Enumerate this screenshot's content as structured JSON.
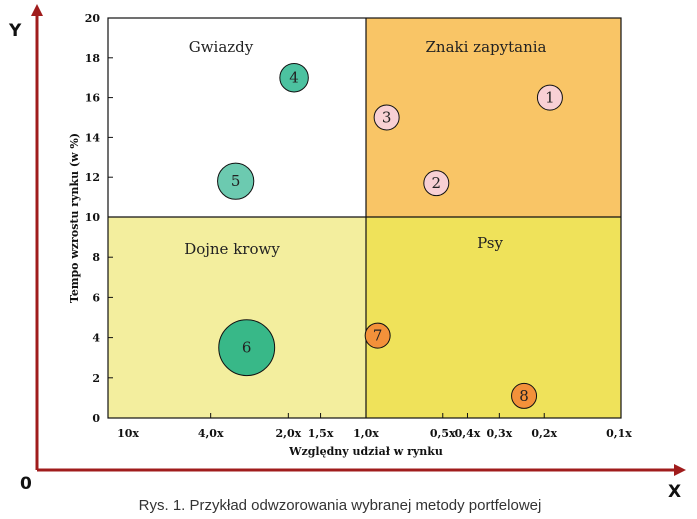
{
  "chart_data": {
    "type": "scatter",
    "subtype": "bubble",
    "title": "",
    "caption": "Rys. 1. Przykład odwzorowania wybranej metody portfelowej",
    "xlabel": "Względny udział w rynku",
    "ylabel": "Tempo wzrostu rynku  (w %)",
    "x_axis_letter": "X",
    "y_axis_letter": "Y",
    "origin_label": "0",
    "x_scale": "log",
    "x_reversed": true,
    "xlim": [
      10,
      0.1
    ],
    "ylim": [
      0,
      20
    ],
    "x_ticks": [
      {
        "value": 10,
        "label": "10x"
      },
      {
        "value": 4,
        "label": "4,0x"
      },
      {
        "value": 2,
        "label": "2,0x"
      },
      {
        "value": 1.5,
        "label": "1,5x"
      },
      {
        "value": 1,
        "label": "1,0x"
      },
      {
        "value": 0.5,
        "label": "0,5x"
      },
      {
        "value": 0.4,
        "label": "0,4x"
      },
      {
        "value": 0.3,
        "label": "0,3x"
      },
      {
        "value": 0.2,
        "label": "0,2x"
      },
      {
        "value": 0.1,
        "label": "0,1x"
      }
    ],
    "y_ticks": [
      {
        "value": 0,
        "label": "0"
      },
      {
        "value": 2,
        "label": "2"
      },
      {
        "value": 4,
        "label": "4"
      },
      {
        "value": 6,
        "label": "6"
      },
      {
        "value": 8,
        "label": "8"
      },
      {
        "value": 10,
        "label": "10"
      },
      {
        "value": 12,
        "label": "12"
      },
      {
        "value": 14,
        "label": "14"
      },
      {
        "value": 16,
        "label": "16"
      },
      {
        "value": 18,
        "label": "18"
      },
      {
        "value": 20,
        "label": "20"
      }
    ],
    "quadrants": [
      {
        "name": "Gwiazdy",
        "x_range": [
          10,
          1
        ],
        "y_range": [
          10,
          20
        ],
        "color": "#ffffff"
      },
      {
        "name": "Znaki zapytania",
        "x_range": [
          1,
          0.1
        ],
        "y_range": [
          10,
          20
        ],
        "color": "#f9c566"
      },
      {
        "name": "Dojne krowy",
        "x_range": [
          10,
          1
        ],
        "y_range": [
          0,
          10
        ],
        "color": "#f3ee9e"
      },
      {
        "name": "Psy",
        "x_range": [
          1,
          0.1
        ],
        "y_range": [
          0,
          10
        ],
        "color": "#efe25a"
      }
    ],
    "points": [
      {
        "label": "1",
        "x": 0.19,
        "y": 16.0,
        "size": 1,
        "color": "#f8d0d4"
      },
      {
        "label": "2",
        "x": 0.53,
        "y": 11.7,
        "size": 1,
        "color": "#f8d0d4"
      },
      {
        "label": "3",
        "x": 0.83,
        "y": 15.0,
        "size": 1,
        "color": "#f8d0d4"
      },
      {
        "label": "4",
        "x": 1.9,
        "y": 17.0,
        "size": 1.3,
        "color": "#4cc2a0"
      },
      {
        "label": "5",
        "x": 3.2,
        "y": 11.8,
        "size": 2.1,
        "color": "#6ccab0"
      },
      {
        "label": "6",
        "x": 2.9,
        "y": 3.5,
        "size": 5.0,
        "color": "#38b888"
      },
      {
        "label": "7",
        "x": 0.9,
        "y": 4.1,
        "size": 1,
        "color": "#f3913a"
      },
      {
        "label": "8",
        "x": 0.24,
        "y": 1.1,
        "size": 1,
        "color": "#f3913a"
      }
    ],
    "colors": {
      "axis": "#a01c1c",
      "frame": "#111111",
      "bubble_stroke": "#111111"
    }
  }
}
